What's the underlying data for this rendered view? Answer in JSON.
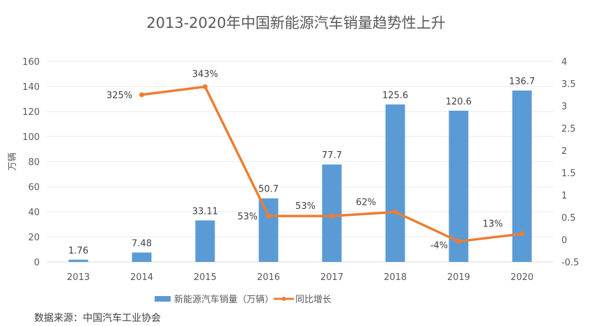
{
  "chart_data": {
    "type": "bar+line",
    "title": "2013-2020年中国新能源汽车销量趋势性上升",
    "categories": [
      "2013",
      "2014",
      "2015",
      "2016",
      "2017",
      "2018",
      "2019",
      "2020"
    ],
    "ylabel": "万辆",
    "ylim": [
      0,
      160
    ],
    "yticks": [
      "0",
      "20",
      "40",
      "60",
      "80",
      "100",
      "120",
      "140",
      "160"
    ],
    "y2lim": [
      -0.5,
      4
    ],
    "y2ticks": [
      "-0.5",
      "0",
      "0.5",
      "1",
      "1.5",
      "2",
      "2.5",
      "3",
      "3.5",
      "4"
    ],
    "grid": true,
    "legend_position": "bottom",
    "series": [
      {
        "name": "新能源汽车销量（万辆）",
        "type": "bar",
        "axis": "left",
        "color": "#5B9BD5",
        "values": [
          1.76,
          7.48,
          33.11,
          50.7,
          77.7,
          125.6,
          120.6,
          136.7
        ],
        "labels": [
          "1.76",
          "7.48",
          "33.11",
          "50.7",
          "77.7",
          "125.6",
          "120.6",
          "136.7"
        ]
      },
      {
        "name": "同比增长",
        "type": "line",
        "axis": "right",
        "color": "#ED7D31",
        "values": [
          null,
          3.25,
          3.43,
          0.53,
          0.53,
          0.62,
          -0.04,
          0.13
        ],
        "labels": [
          null,
          "325%",
          "343%",
          "53%",
          "53%",
          "62%",
          "-4%",
          "13%"
        ]
      }
    ]
  },
  "source": "数据来源：中国汽车工业协会"
}
